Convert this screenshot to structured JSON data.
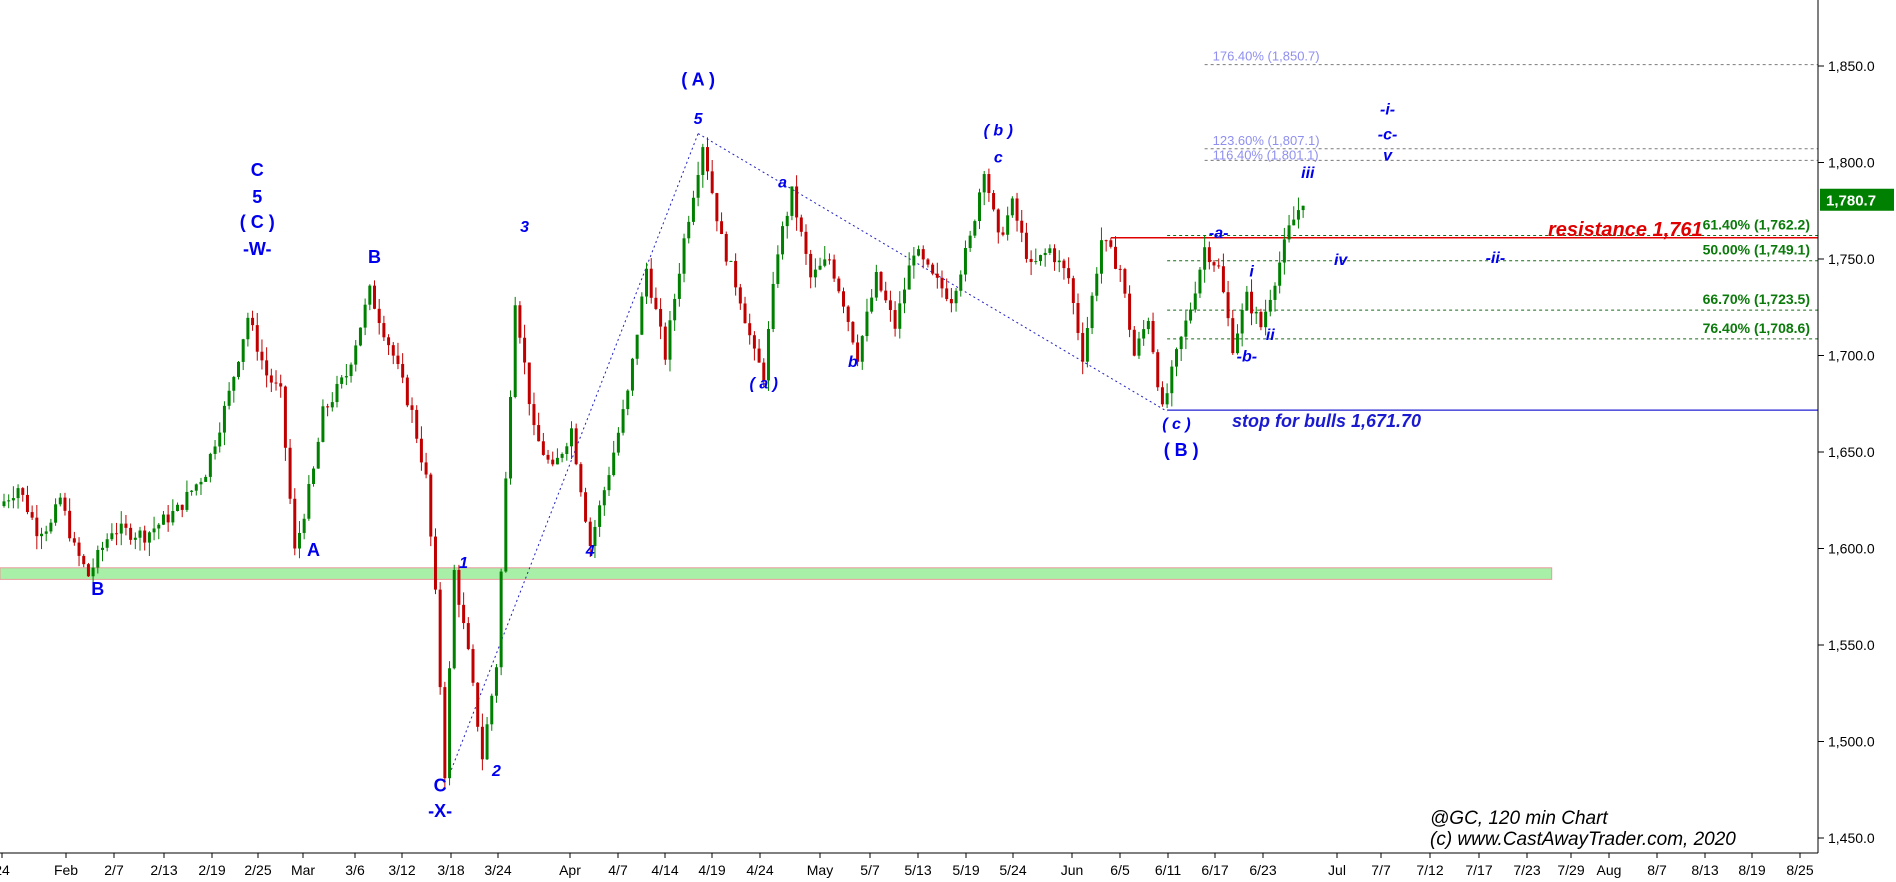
{
  "chart_data": {
    "type": "candlestick",
    "symbol_caption": "@GC, 120 min Chart",
    "copyright": "(c) www.CastAwayTrader.com, 2020",
    "x_tick_labels": [
      "24",
      "Feb",
      "2/7",
      "2/13",
      "2/19",
      "2/25",
      "Mar",
      "3/6",
      "3/12",
      "3/18",
      "3/24",
      "Apr",
      "4/7",
      "4/14",
      "4/19",
      "4/24",
      "May",
      "5/7",
      "5/13",
      "5/19",
      "5/24",
      "Jun",
      "6/5",
      "6/11",
      "6/17",
      "6/23",
      "Jul",
      "7/7",
      "7/12",
      "7/17",
      "7/23",
      "7/29",
      "Aug",
      "8/7",
      "8/13",
      "8/19",
      "8/25"
    ],
    "y_tick_labels": [
      "1,850.0",
      "1,800.0",
      "1,750.0",
      "1,700.0",
      "1,650.0",
      "1,600.0",
      "1,550.0",
      "1,500.0",
      "1,450.0"
    ],
    "ylim": [
      1435,
      1895
    ],
    "last_price_label": "1,780.7",
    "path_anchors": [
      {
        "t": 0,
        "p": 1622
      },
      {
        "t": 4,
        "p": 1632
      },
      {
        "t": 8,
        "p": 1610
      },
      {
        "t": 11,
        "p": 1612
      },
      {
        "t": 13,
        "p": 1626
      },
      {
        "t": 16,
        "p": 1600
      },
      {
        "t": 19,
        "p": 1586
      },
      {
        "t": 24,
        "p": 1610
      },
      {
        "t": 31,
        "p": 1607
      },
      {
        "t": 38,
        "p": 1620
      },
      {
        "t": 44,
        "p": 1640
      },
      {
        "t": 49,
        "p": 1680
      },
      {
        "t": 53,
        "p": 1720
      },
      {
        "t": 57,
        "p": 1690
      },
      {
        "t": 60,
        "p": 1680
      },
      {
        "t": 63,
        "p": 1598
      },
      {
        "t": 67,
        "p": 1640
      },
      {
        "t": 69,
        "p": 1670
      },
      {
        "t": 74,
        "p": 1690
      },
      {
        "t": 79,
        "p": 1733
      },
      {
        "t": 84,
        "p": 1700
      },
      {
        "t": 88,
        "p": 1670
      },
      {
        "t": 91,
        "p": 1636
      },
      {
        "t": 93,
        "p": 1575
      },
      {
        "t": 95,
        "p": 1484
      },
      {
        "t": 97,
        "p": 1588
      },
      {
        "t": 100,
        "p": 1545
      },
      {
        "t": 103,
        "p": 1492
      },
      {
        "t": 106,
        "p": 1540
      },
      {
        "t": 110,
        "p": 1730
      },
      {
        "t": 114,
        "p": 1660
      },
      {
        "t": 118,
        "p": 1640
      },
      {
        "t": 122,
        "p": 1662
      },
      {
        "t": 126,
        "p": 1602
      },
      {
        "t": 130,
        "p": 1640
      },
      {
        "t": 134,
        "p": 1680
      },
      {
        "t": 138,
        "p": 1745
      },
      {
        "t": 142,
        "p": 1700
      },
      {
        "t": 146,
        "p": 1760
      },
      {
        "t": 150,
        "p": 1810
      },
      {
        "t": 154,
        "p": 1760
      },
      {
        "t": 158,
        "p": 1730
      },
      {
        "t": 161,
        "p": 1700
      },
      {
        "t": 163,
        "p": 1690
      },
      {
        "t": 166,
        "p": 1755
      },
      {
        "t": 169,
        "p": 1784
      },
      {
        "t": 173,
        "p": 1740
      },
      {
        "t": 177,
        "p": 1750
      },
      {
        "t": 180,
        "p": 1728
      },
      {
        "t": 183,
        "p": 1700
      },
      {
        "t": 187,
        "p": 1740
      },
      {
        "t": 191,
        "p": 1715
      },
      {
        "t": 195,
        "p": 1755
      },
      {
        "t": 199,
        "p": 1740
      },
      {
        "t": 203,
        "p": 1730
      },
      {
        "t": 207,
        "p": 1760
      },
      {
        "t": 210,
        "p": 1798
      },
      {
        "t": 213,
        "p": 1760
      },
      {
        "t": 216,
        "p": 1778
      },
      {
        "t": 220,
        "p": 1745
      },
      {
        "t": 224,
        "p": 1755
      },
      {
        "t": 228,
        "p": 1740
      },
      {
        "t": 231,
        "p": 1700
      },
      {
        "t": 235,
        "p": 1760
      },
      {
        "t": 239,
        "p": 1745
      },
      {
        "t": 242,
        "p": 1700
      },
      {
        "t": 245,
        "p": 1720
      },
      {
        "t": 248,
        "p": 1671
      },
      {
        "t": 251,
        "p": 1700
      },
      {
        "t": 254,
        "p": 1725
      },
      {
        "t": 257,
        "p": 1756
      },
      {
        "t": 260,
        "p": 1745
      },
      {
        "t": 263,
        "p": 1705
      },
      {
        "t": 266,
        "p": 1730
      },
      {
        "t": 269,
        "p": 1715
      },
      {
        "t": 272,
        "p": 1740
      },
      {
        "t": 275,
        "p": 1765
      },
      {
        "t": 278,
        "p": 1781
      }
    ],
    "labels": [
      {
        "text": "B",
        "t": 20,
        "p": 1576,
        "style": "bold",
        "size": 18
      },
      {
        "text": "-W-",
        "t": 54,
        "p": 1752,
        "style": "bold",
        "size": 18
      },
      {
        "text": "( C )",
        "t": 54,
        "p": 1766,
        "style": "bold",
        "size": 18
      },
      {
        "text": "5",
        "t": 54,
        "p": 1779,
        "style": "bold",
        "size": 18
      },
      {
        "text": "C",
        "t": 54,
        "p": 1793,
        "style": "bold",
        "size": 18
      },
      {
        "text": "A",
        "t": 66,
        "p": 1596,
        "style": "bold",
        "size": 18
      },
      {
        "text": "B",
        "t": 79,
        "p": 1748,
        "style": "bold",
        "size": 18
      },
      {
        "text": "C",
        "t": 93,
        "p": 1474,
        "style": "bold",
        "size": 18
      },
      {
        "text": "-X-",
        "t": 93,
        "p": 1461,
        "style": "bold",
        "size": 18
      },
      {
        "text": "1",
        "t": 98,
        "p": 1590,
        "style": "boldital",
        "size": 16
      },
      {
        "text": "2",
        "t": 105,
        "p": 1482,
        "style": "boldital",
        "size": 16
      },
      {
        "text": "3",
        "t": 111,
        "p": 1764,
        "style": "boldital",
        "size": 16
      },
      {
        "text": "4",
        "t": 125,
        "p": 1596,
        "style": "boldital",
        "size": 16
      },
      {
        "text": "( A )",
        "t": 148,
        "p": 1840,
        "style": "bold",
        "size": 18
      },
      {
        "text": "5",
        "t": 148,
        "p": 1820,
        "style": "boldital",
        "size": 16
      },
      {
        "text": "a",
        "t": 166,
        "p": 1787,
        "style": "boldital",
        "size": 16
      },
      {
        "text": "( a )",
        "t": 162,
        "p": 1683,
        "style": "boldital",
        "size": 16
      },
      {
        "text": "b",
        "t": 181,
        "p": 1694,
        "style": "boldital",
        "size": 16
      },
      {
        "text": "( b )",
        "t": 212,
        "p": 1814,
        "style": "boldital",
        "size": 16
      },
      {
        "text": "c",
        "t": 212,
        "p": 1800,
        "style": "boldital",
        "size": 16
      },
      {
        "text": "( c )",
        "t": 250,
        "p": 1662,
        "style": "boldital",
        "size": 16
      },
      {
        "text": "( B )",
        "t": 251,
        "p": 1648,
        "style": "bold",
        "size": 18
      },
      {
        "text": "-a-",
        "t": 259,
        "p": 1761,
        "style": "boldital",
        "size": 16
      },
      {
        "text": "-b-",
        "t": 265,
        "p": 1697,
        "style": "boldital",
        "size": 16
      },
      {
        "text": "i",
        "t": 266,
        "p": 1741,
        "style": "boldital",
        "size": 16
      },
      {
        "text": "ii",
        "t": 270,
        "p": 1708,
        "style": "boldital",
        "size": 16
      },
      {
        "text": "iii",
        "t": 278,
        "p": 1792,
        "style": "boldital",
        "size": 16
      },
      {
        "text": "iv",
        "t": 285,
        "p": 1747,
        "style": "boldital",
        "size": 16
      },
      {
        "text": "-ii-",
        "t": 318,
        "p": 1748,
        "style": "boldital",
        "size": 16
      },
      {
        "text": "-i-",
        "t": 295,
        "p": 1825,
        "style": "boldital",
        "size": 16
      },
      {
        "text": "-c-",
        "t": 295,
        "p": 1812,
        "style": "boldital",
        "size": 16
      },
      {
        "text": "v",
        "t": 295,
        "p": 1801,
        "style": "boldital",
        "size": 16
      }
    ],
    "support_zone": {
      "from": 1584,
      "to": 1590,
      "t_end": 330
    },
    "dotted_wave_lines": [
      [
        {
          "t": 95,
          "p": 1483
        },
        {
          "t": 148,
          "p": 1815
        }
      ],
      [
        {
          "t": 148,
          "p": 1815
        },
        {
          "t": 248,
          "p": 1671
        }
      ]
    ],
    "resistance": {
      "text": "resistance 1,761",
      "level": 1761,
      "t_start": 236
    },
    "stop": {
      "text": "stop for bulls 1,671.70",
      "level": 1671.7,
      "t_start": 248
    },
    "fib_retracements": [
      {
        "label": "61.40% (1,762.2)",
        "level": 1762.2
      },
      {
        "label": "50.00% (1,749.1)",
        "level": 1749.1
      },
      {
        "label": "66.70% (1,723.5)",
        "level": 1723.5
      },
      {
        "label": "76.40% (1,708.6)",
        "level": 1708.6
      }
    ],
    "fib_extensions": [
      {
        "label": "176.40% (1,850.7)",
        "level": 1850.7
      },
      {
        "label": "123.60% (1,807.1)",
        "level": 1807.1
      },
      {
        "label": "116.40% (1,801.1)",
        "level": 1801.1
      }
    ],
    "colors": {
      "up": "#008000",
      "down": "#c00000",
      "wave": "#0000ee",
      "fib": "#0a7a0a",
      "ext": "#8f8ff0",
      "resistance": "#e00000",
      "zone": "#a8f0a8",
      "stop": "#2020d0",
      "price_box": "#008000"
    }
  }
}
